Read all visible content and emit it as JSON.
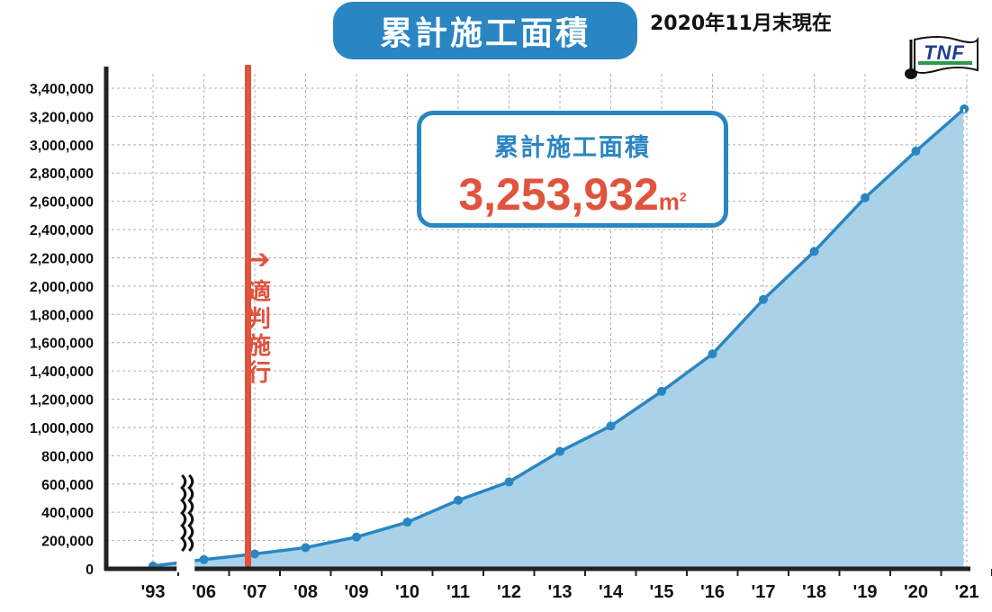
{
  "title": "累計施工面積",
  "date_note": "2020年11月末現在",
  "total_box": {
    "label": "累計施工面積",
    "value": "3,253,932",
    "unit": "m",
    "unit_sup": "2"
  },
  "logo": {
    "text": "TNF"
  },
  "law_note": {
    "arrow": "➔",
    "text": "適判施行"
  },
  "colors": {
    "line": "#2a86c2",
    "area": "#a9d2e9",
    "accent": "#e0533c",
    "title_bg": "#2a86c2",
    "grid": "#b0b0b0",
    "axis": "#222222"
  },
  "chart_data": {
    "type": "area",
    "title": "累計施工面積",
    "xlabel": "",
    "ylabel": "",
    "x_ticks": [
      "'93",
      "'06",
      "'07",
      "'08",
      "'09",
      "'10",
      "'11",
      "'12",
      "'13",
      "'14",
      "'15",
      "'16",
      "'17",
      "'18",
      "'19",
      "'20",
      "'21"
    ],
    "y_ticks": [
      "0",
      "200,000",
      "400,000",
      "600,000",
      "800,000",
      "1,000,000",
      "1,200,000",
      "1,400,000",
      "1,600,000",
      "1,800,000",
      "2,000,000",
      "2,200,000",
      "2,400,000",
      "2,600,000",
      "2,800,000",
      "3,000,000",
      "3,200,000",
      "3,400,000"
    ],
    "ylim": [
      0,
      3400000
    ],
    "grid": true,
    "axis_break_after": "'93",
    "marker_line_at": "'07",
    "series": [
      {
        "x": [
          "'93",
          "'06",
          "'07",
          "'08",
          "'09",
          "'10",
          "'11",
          "'12",
          "'13",
          "'14",
          "'15",
          "'16",
          "'17",
          "'18",
          "'19",
          "'20"
        ],
        "values": [
          20000,
          65000,
          105000,
          150000,
          225000,
          330000,
          485000,
          615000,
          830000,
          1010000,
          1255000,
          1520000,
          1905000,
          2245000,
          2625000,
          2955000
        ],
        "endpoint_value": 3253932
      }
    ]
  }
}
